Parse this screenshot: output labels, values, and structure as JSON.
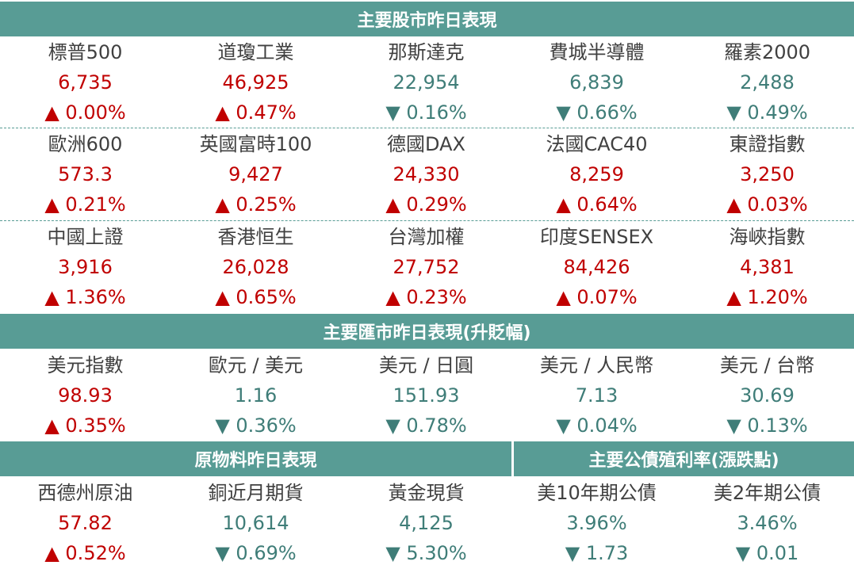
{
  "colors": {
    "header_bg": "#589c95",
    "up": "#c00000",
    "down": "#3f7d78"
  },
  "sections": {
    "stocks_title": "主要股市昨日表現",
    "fx_title": "主要匯市昨日表現(升貶幅)",
    "commodities_title": "原物料昨日表現",
    "bonds_title": "主要公債殖利率(漲跌點)"
  },
  "stocks": [
    [
      {
        "name": "標普500",
        "value": "6,735",
        "change": "▲ 0.00%",
        "dir": "up"
      },
      {
        "name": "道瓊工業",
        "value": "46,925",
        "change": "▲ 0.47%",
        "dir": "up"
      },
      {
        "name": "那斯達克",
        "value": "22,954",
        "change": "▼ 0.16%",
        "dir": "down"
      },
      {
        "name": "費城半導體",
        "value": "6,839",
        "change": "▼ 0.66%",
        "dir": "down"
      },
      {
        "name": "羅素2000",
        "value": "2,488",
        "change": "▼ 0.49%",
        "dir": "down"
      }
    ],
    [
      {
        "name": "歐洲600",
        "value": "573.3",
        "change": "▲ 0.21%",
        "dir": "up"
      },
      {
        "name": "英國富時100",
        "value": "9,427",
        "change": "▲ 0.25%",
        "dir": "up"
      },
      {
        "name": "德國DAX",
        "value": "24,330",
        "change": "▲ 0.29%",
        "dir": "up"
      },
      {
        "name": "法國CAC40",
        "value": "8,259",
        "change": "▲ 0.64%",
        "dir": "up"
      },
      {
        "name": "東證指數",
        "value": "3,250",
        "change": "▲ 0.03%",
        "dir": "up"
      }
    ],
    [
      {
        "name": "中國上證",
        "value": "3,916",
        "change": "▲ 1.36%",
        "dir": "up"
      },
      {
        "name": "香港恒生",
        "value": "26,028",
        "change": "▲ 0.65%",
        "dir": "up"
      },
      {
        "name": "台灣加權",
        "value": "27,752",
        "change": "▲ 0.23%",
        "dir": "up"
      },
      {
        "name": "印度SENSEX",
        "value": "84,426",
        "change": "▲ 0.07%",
        "dir": "up"
      },
      {
        "name": "海峽指數",
        "value": "4,381",
        "change": "▲ 1.20%",
        "dir": "up"
      }
    ]
  ],
  "fx": [
    {
      "name": "美元指數",
      "value": "98.93",
      "change": "▲ 0.35%",
      "dir": "up"
    },
    {
      "name": "歐元 / 美元",
      "value": "1.16",
      "change": "▼ 0.36%",
      "dir": "down"
    },
    {
      "name": "美元 / 日圓",
      "value": "151.93",
      "change": "▼ 0.78%",
      "dir": "down"
    },
    {
      "name": "美元 / 人民幣",
      "value": "7.13",
      "change": "▼ 0.04%",
      "dir": "down"
    },
    {
      "name": "美元 / 台幣",
      "value": "30.69",
      "change": "▼ 0.13%",
      "dir": "down"
    }
  ],
  "commodities": [
    {
      "name": "西德州原油",
      "value": "57.82",
      "change": "▲ 0.52%",
      "dir": "up"
    },
    {
      "name": "銅近月期貨",
      "value": "10,614",
      "change": "▼ 0.69%",
      "dir": "down"
    },
    {
      "name": "黃金現貨",
      "value": "4,125",
      "change": "▼ 5.30%",
      "dir": "down"
    }
  ],
  "bonds": [
    {
      "name": "美10年期公債",
      "value": "3.96%",
      "change": "▼ 1.73",
      "dir": "down"
    },
    {
      "name": "美2年期公債",
      "value": "3.46%",
      "change": "▼ 0.01",
      "dir": "down"
    }
  ]
}
